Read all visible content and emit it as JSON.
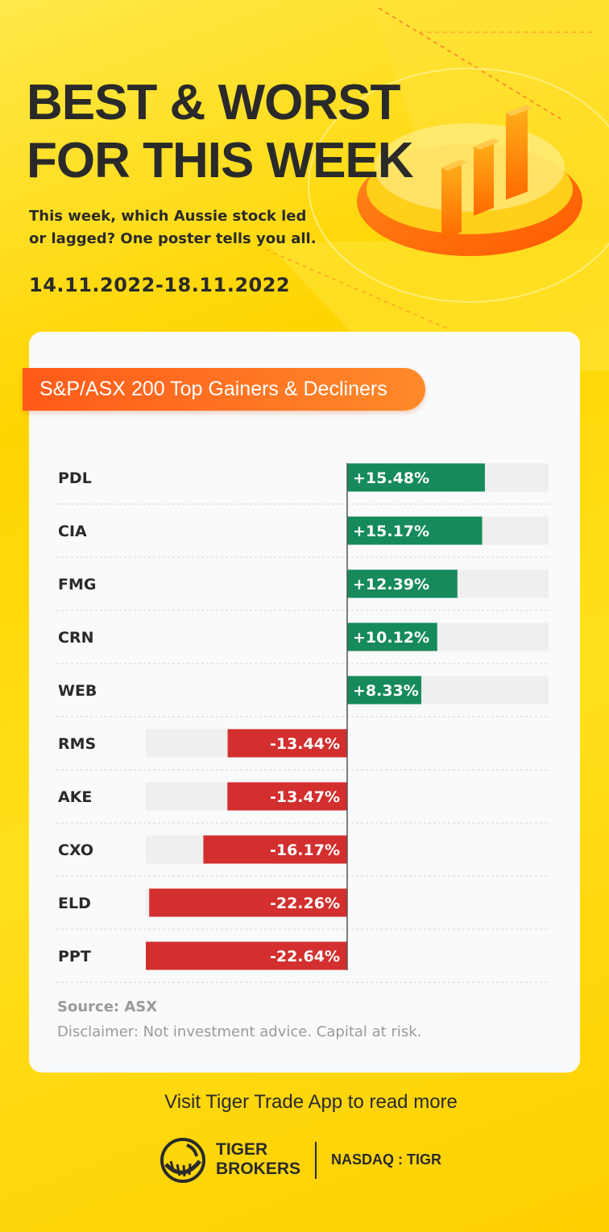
{
  "header": {
    "title_line1": "BEST & WORST",
    "title_line2": "FOR THIS WEEK",
    "subtitle_line1": "This week, which Aussie stock led",
    "subtitle_line2": "or lagged? One poster tells you all.",
    "date_range": "14.11.2022-18.11.2022"
  },
  "card": {
    "heading": "S&P/ASX 200 Top Gainers & Decliners",
    "source": "Source: ASX",
    "disclaimer": "Disclaimer: Not investment advice. Capital at risk."
  },
  "footer": {
    "visit_text": "Visit Tiger Trade App to read more",
    "brand_line1": "TIGER",
    "brand_line2": "BROKERS",
    "ticker": "NASDAQ : TIGR"
  },
  "colors": {
    "background": "#ffd500",
    "gain": "#168a5a",
    "loss": "#d32f2f",
    "accent": "#ff6a1f",
    "track": "#efefee"
  },
  "chart_data": {
    "type": "bar",
    "orientation": "horizontal",
    "title": "S&P/ASX 200 Top Gainers & Decliners",
    "categories": [
      "PDL",
      "CIA",
      "FMG",
      "CRN",
      "WEB",
      "RMS",
      "AKE",
      "CXO",
      "ELD",
      "PPT"
    ],
    "values": [
      15.48,
      15.17,
      12.39,
      10.12,
      8.33,
      -13.44,
      -13.47,
      -16.17,
      -22.26,
      -22.64
    ],
    "labels": [
      "+15.48%",
      "+15.17%",
      "+12.39%",
      "+10.12%",
      "+8.33%",
      "-13.44%",
      "-13.47%",
      "-16.17%",
      "-22.26%",
      "-22.64%"
    ],
    "unit": "%",
    "xlim": [
      -22.64,
      22.64
    ],
    "grid": false,
    "legend": "none"
  }
}
